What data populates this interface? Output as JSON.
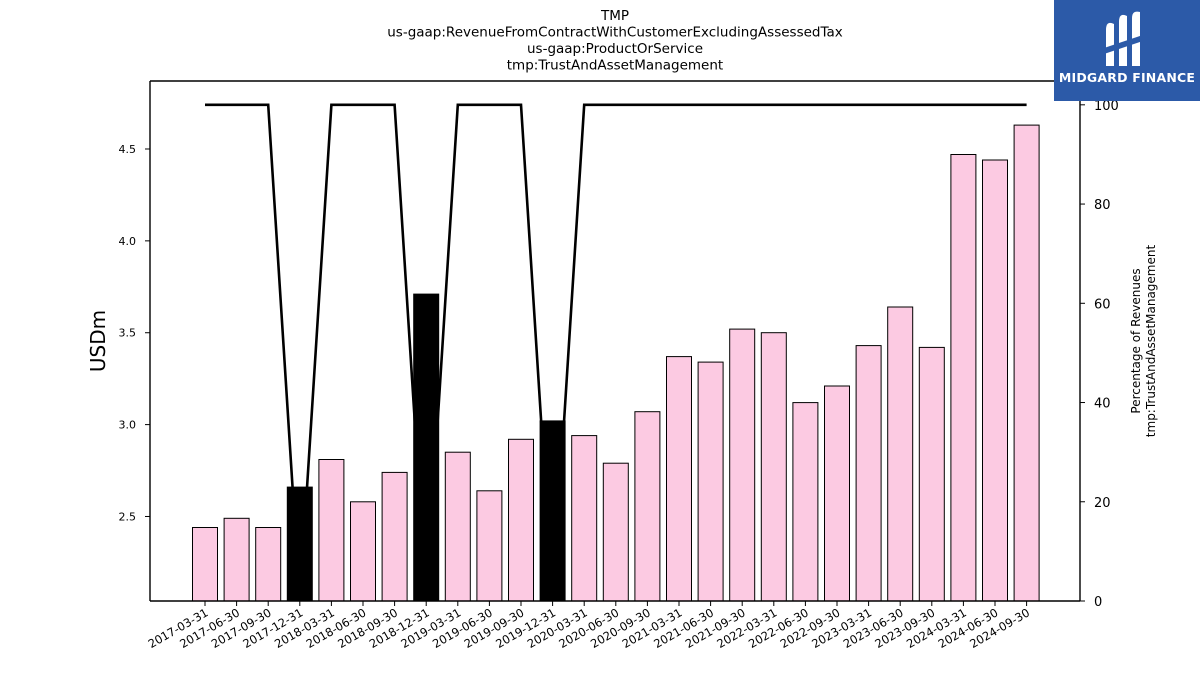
{
  "chart_data": {
    "type": "bar",
    "title_lines": [
      "TMP",
      "us-gaap:RevenueFromContractWithCustomerExcludingAssessedTax",
      "us-gaap:ProductOrService",
      "tmp:TrustAndAssetManagement"
    ],
    "ylabel": "USDm",
    "y2label_lines": [
      "Percentage of Revenues",
      "tmp:TrustAndAssetManagement"
    ],
    "ylim": [
      2.04,
      4.87
    ],
    "y_ticks": [
      2.5,
      3.0,
      3.5,
      4.0,
      4.5
    ],
    "y2lim": [
      0,
      104.8
    ],
    "y2_ticks": [
      0,
      20,
      40,
      60,
      80,
      100
    ],
    "categories": [
      "2017-03-31",
      "2017-06-30",
      "2017-09-30",
      "2017-12-31",
      "2018-03-31",
      "2018-06-30",
      "2018-09-30",
      "2018-12-31",
      "2019-03-31",
      "2019-06-30",
      "2019-09-30",
      "2019-12-31",
      "2020-03-31",
      "2020-06-30",
      "2020-09-30",
      "2021-03-31",
      "2021-06-30",
      "2021-09-30",
      "2022-03-31",
      "2022-06-30",
      "2022-09-30",
      "2023-03-31",
      "2023-06-30",
      "2023-09-30",
      "2024-03-31",
      "2024-06-30",
      "2024-09-30"
    ],
    "series": [
      {
        "kind": "bar",
        "values": [
          2.44,
          2.49,
          2.44,
          2.66,
          2.81,
          2.58,
          2.74,
          3.71,
          2.85,
          2.64,
          2.92,
          3.02,
          2.94,
          2.79,
          3.07,
          3.37,
          3.34,
          3.52,
          3.5,
          3.12,
          3.21,
          3.43,
          3.64,
          3.42,
          4.47,
          4.44,
          4.63
        ],
        "highlight": [
          false,
          false,
          false,
          true,
          false,
          false,
          false,
          true,
          false,
          false,
          false,
          true,
          false,
          false,
          false,
          false,
          false,
          false,
          false,
          false,
          false,
          false,
          false,
          false,
          false,
          false,
          false
        ]
      },
      {
        "kind": "line",
        "axis": "right",
        "values": [
          100,
          100,
          100,
          0,
          100,
          100,
          100,
          0,
          100,
          100,
          100,
          0,
          100,
          100,
          100,
          100,
          100,
          100,
          100,
          100,
          100,
          100,
          100,
          100,
          100,
          100,
          100
        ]
      }
    ],
    "colors": {
      "bar": "#fccae2",
      "bar_highlight": "#000000",
      "line": "#000000"
    },
    "grid": false
  },
  "logo": {
    "text": "MIDGARD FINANCE",
    "color": "#2c5aa8"
  }
}
